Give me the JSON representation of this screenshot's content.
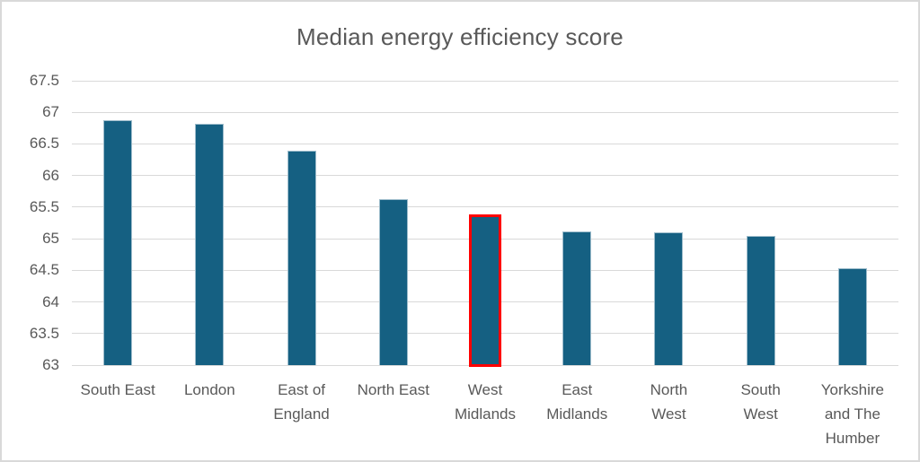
{
  "title": "Median energy efficiency score",
  "colors": {
    "bar_fill": "#156082",
    "bar_edge": "#9dbccb",
    "highlight_border": "#ff0000",
    "gridline": "#d9d9d9",
    "text": "#595959",
    "canvas_border": "#d9d9d9"
  },
  "chart_data": {
    "type": "bar",
    "title": "Median energy efficiency score",
    "xlabel": "",
    "ylabel": "",
    "categories": [
      "South East",
      "London",
      "East of England",
      "North East",
      "West Midlands",
      "East Midlands",
      "North West",
      "South West",
      "Yorkshire and The Humber"
    ],
    "category_label_lines": [
      [
        "South East"
      ],
      [
        "London"
      ],
      [
        "East of",
        "England"
      ],
      [
        "North East"
      ],
      [
        "West",
        "Midlands"
      ],
      [
        "East",
        "Midlands"
      ],
      [
        "North",
        "West"
      ],
      [
        "South",
        "West"
      ],
      [
        "Yorkshire",
        "and The",
        "Humber"
      ]
    ],
    "values": [
      66.87,
      66.82,
      66.39,
      65.63,
      65.35,
      65.12,
      65.1,
      65.04,
      64.54
    ],
    "highlighted_category": "West Midlands",
    "highlighted_index": 4,
    "ylim": [
      63,
      67.5
    ],
    "yticks": [
      63,
      63.5,
      64,
      64.5,
      65,
      65.5,
      66,
      66.5,
      67,
      67.5
    ],
    "grid": true,
    "legend": false
  }
}
